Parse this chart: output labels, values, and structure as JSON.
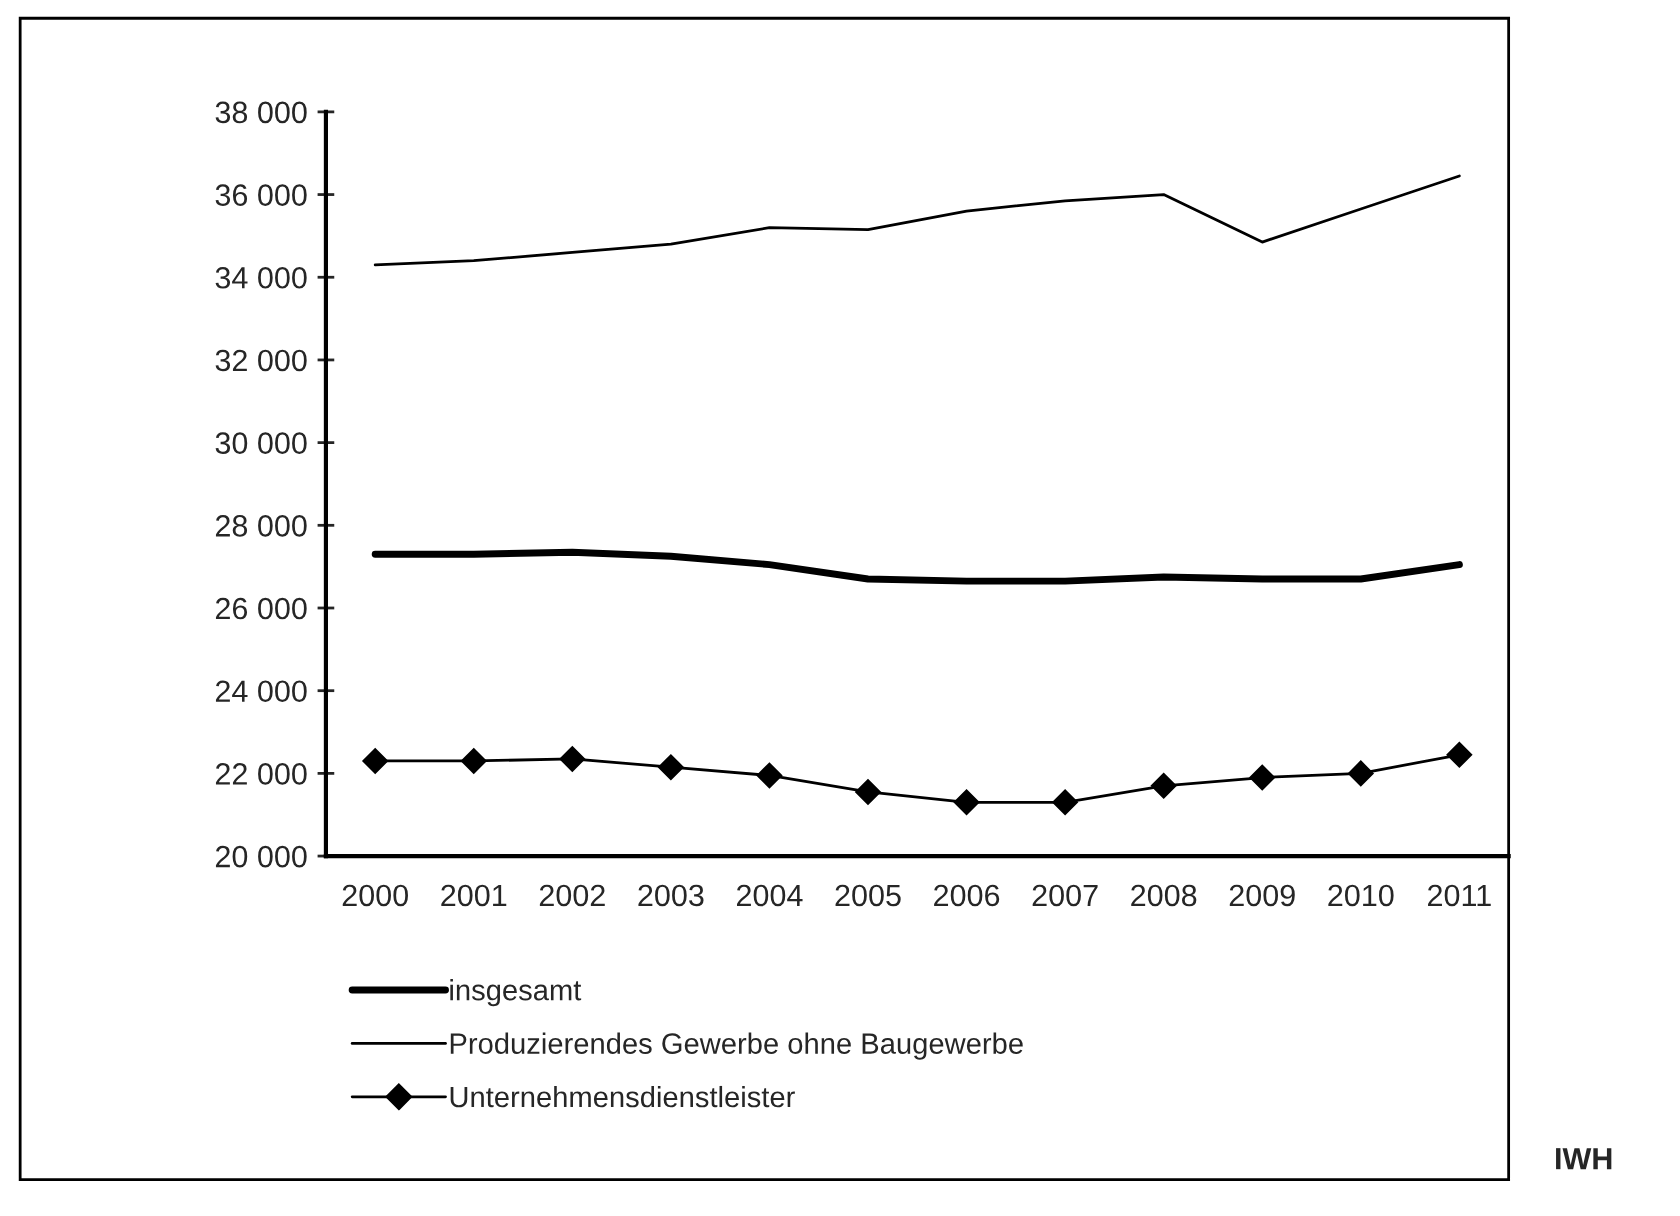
{
  "chart_data": {
    "type": "line",
    "categories": [
      "2000",
      "2001",
      "2002",
      "2003",
      "2004",
      "2005",
      "2006",
      "2007",
      "2008",
      "2009",
      "2010",
      "2011"
    ],
    "series": [
      {
        "name": "insgesamt",
        "color": "#000000",
        "marker": "none",
        "values": [
          27300,
          27300,
          27350,
          27250,
          27050,
          26700,
          26650,
          26650,
          26750,
          26700,
          26700,
          27050
        ]
      },
      {
        "name": "Produzierendes Gewerbe ohne Baugewerbe",
        "color": "#000000",
        "marker": "none",
        "values": [
          34300,
          34400,
          34600,
          34800,
          35200,
          35150,
          35600,
          35850,
          36000,
          34850,
          35650,
          36450
        ]
      },
      {
        "name": "Unternehmensdienstleister",
        "color": "#000000",
        "marker": "diamond",
        "values": [
          22300,
          22300,
          22350,
          22150,
          21950,
          21550,
          21300,
          21300,
          21700,
          21900,
          22000,
          22450
        ]
      }
    ],
    "ylim": [
      20000,
      38000
    ],
    "yticks": [
      {
        "value": 20000,
        "label": "20 000"
      },
      {
        "value": 22000,
        "label": "22 000"
      },
      {
        "value": 24000,
        "label": "24 000"
      },
      {
        "value": 26000,
        "label": "26 000"
      },
      {
        "value": 28000,
        "label": "28 000"
      },
      {
        "value": 30000,
        "label": "30 000"
      },
      {
        "value": 32000,
        "label": "32 000"
      },
      {
        "value": 34000,
        "label": "34 000"
      },
      {
        "value": 36000,
        "label": "36 000"
      },
      {
        "value": 38000,
        "label": "38 000"
      }
    ],
    "grid": false,
    "legend": "bottom left",
    "line_style": "solid",
    "annotations": [
      "IWH"
    ]
  }
}
